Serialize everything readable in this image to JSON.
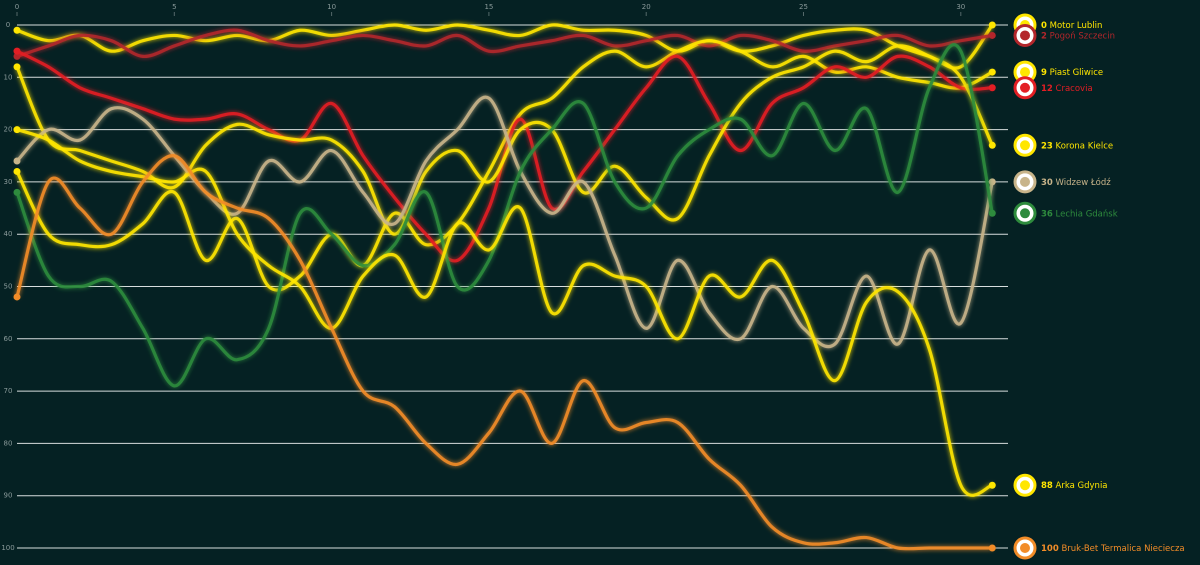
{
  "chart_data": {
    "type": "line",
    "x": [
      0,
      1,
      2,
      3,
      4,
      5,
      6,
      7,
      8,
      9,
      10,
      11,
      12,
      13,
      14,
      15,
      16,
      17,
      18,
      19,
      20,
      21,
      22,
      23,
      24,
      25,
      26,
      27,
      28,
      29,
      30,
      31
    ],
    "xlim": [
      0,
      31.5
    ],
    "xticks": [
      0,
      5,
      10,
      15,
      20,
      25,
      30
    ],
    "ylim": [
      0,
      100
    ],
    "yticks": [
      0,
      10,
      20,
      30,
      40,
      50,
      60,
      70,
      80,
      90,
      100
    ],
    "y_inverted": true,
    "grid": true,
    "series": [
      {
        "name": "Motor Lublin",
        "color": "#ffe600",
        "values": [
          1,
          3,
          2,
          5,
          3,
          2,
          3,
          2,
          3,
          1,
          2,
          1,
          0,
          1,
          0,
          1,
          2,
          0,
          1,
          1,
          2,
          5,
          3,
          5,
          4,
          2,
          1,
          1,
          4,
          6,
          8,
          0
        ]
      },
      {
        "name": "Pogoń Szczecin",
        "color": "#b3262b",
        "values": [
          6,
          4,
          2,
          3,
          6,
          4,
          2,
          1,
          3,
          4,
          3,
          2,
          3,
          4,
          2,
          5,
          4,
          3,
          2,
          4,
          3,
          2,
          4,
          2,
          3,
          5,
          4,
          3,
          2,
          4,
          3,
          2
        ]
      },
      {
        "name": "Piast Gliwice",
        "color": "#ffe600",
        "values": [
          28,
          40,
          42,
          42,
          38,
          32,
          45,
          37,
          50,
          48,
          40,
          46,
          36,
          42,
          38,
          28,
          17,
          14,
          8,
          5,
          8,
          5,
          3,
          5,
          8,
          6,
          9,
          8,
          10,
          11,
          12,
          9
        ]
      },
      {
        "name": "Cracovia",
        "color": "#e31e24",
        "values": [
          5,
          8,
          12,
          14,
          16,
          18,
          18,
          17,
          20,
          22,
          15,
          25,
          33,
          40,
          45,
          35,
          18,
          35,
          28,
          20,
          12,
          6,
          15,
          24,
          15,
          12,
          8,
          10,
          6,
          8,
          12,
          12
        ]
      },
      {
        "name": "Korona Kielce",
        "color": "#ffe600",
        "values": [
          8,
          22,
          24,
          26,
          28,
          31,
          23,
          19,
          21,
          22,
          22,
          28,
          40,
          28,
          24,
          30,
          20,
          20,
          32,
          27,
          33,
          37,
          25,
          15,
          10,
          8,
          5,
          7,
          4,
          6,
          10,
          23
        ]
      },
      {
        "name": "Widzew Łódź",
        "color": "#c8b48a",
        "values": [
          26,
          20,
          22,
          16,
          18,
          25,
          32,
          36,
          26,
          30,
          24,
          32,
          38,
          26,
          20,
          14,
          28,
          36,
          30,
          44,
          58,
          45,
          55,
          60,
          50,
          58,
          61,
          48,
          61,
          43,
          57,
          30
        ]
      },
      {
        "name": "Lechia Gdańsk",
        "color": "#2e8b3d",
        "values": [
          32,
          48,
          50,
          49,
          58,
          69,
          60,
          64,
          58,
          36,
          40,
          46,
          42,
          32,
          50,
          45,
          28,
          20,
          15,
          30,
          35,
          25,
          20,
          18,
          25,
          15,
          24,
          16,
          32,
          12,
          5,
          36
        ]
      },
      {
        "name": "Arka Gdynia",
        "color": "#ffe600",
        "values": [
          20,
          22,
          26,
          28,
          29,
          30,
          28,
          40,
          46,
          50,
          58,
          48,
          44,
          52,
          38,
          43,
          35,
          55,
          46,
          48,
          50,
          60,
          48,
          52,
          45,
          55,
          68,
          53,
          51,
          62,
          88,
          88
        ]
      },
      {
        "name": "Bruk-Bet Termalica Nieciecza",
        "color": "#f28c28",
        "values": [
          52,
          30,
          35,
          40,
          30,
          25,
          32,
          35,
          37,
          45,
          58,
          70,
          73,
          80,
          84,
          78,
          70,
          80,
          68,
          77,
          76,
          76,
          83,
          88,
          96,
          99,
          99,
          98,
          100,
          100,
          100,
          100
        ]
      }
    ]
  }
}
